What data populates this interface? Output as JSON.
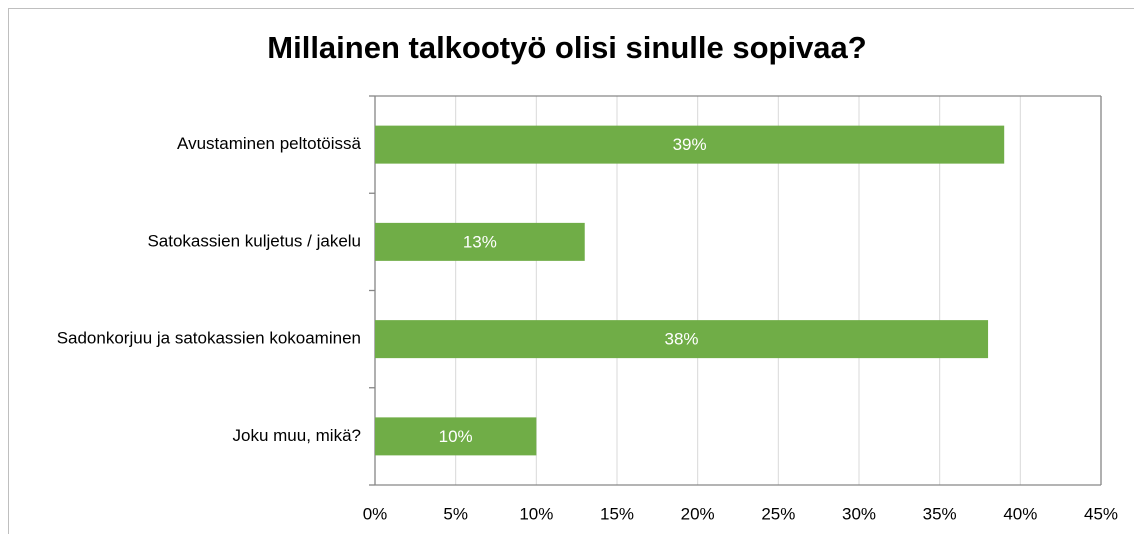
{
  "chart_data": {
    "type": "bar",
    "orientation": "horizontal",
    "title": "Millainen talkootyö olisi sinulle sopivaa?",
    "categories": [
      "Avustaminen peltotöissä",
      "Satokassien kuljetus / jakelu",
      "Sadonkorjuu ja satokassien kokoaminen",
      "Joku muu, mikä?"
    ],
    "values": [
      39,
      13,
      38,
      10
    ],
    "value_labels": [
      "39%",
      "13%",
      "38%",
      "10%"
    ],
    "color": "#70ad47",
    "xlim": [
      0,
      45
    ],
    "xticks": [
      {
        "value": 0,
        "label": "0%"
      },
      {
        "value": 5,
        "label": "5%"
      },
      {
        "value": 10,
        "label": "10%"
      },
      {
        "value": 15,
        "label": "15%"
      },
      {
        "value": 20,
        "label": "20%"
      },
      {
        "value": 25,
        "label": "25%"
      },
      {
        "value": 30,
        "label": "30%"
      },
      {
        "value": 35,
        "label": "35%"
      },
      {
        "value": 40,
        "label": "40%"
      },
      {
        "value": 45,
        "label": "45%"
      }
    ],
    "grid": true
  }
}
